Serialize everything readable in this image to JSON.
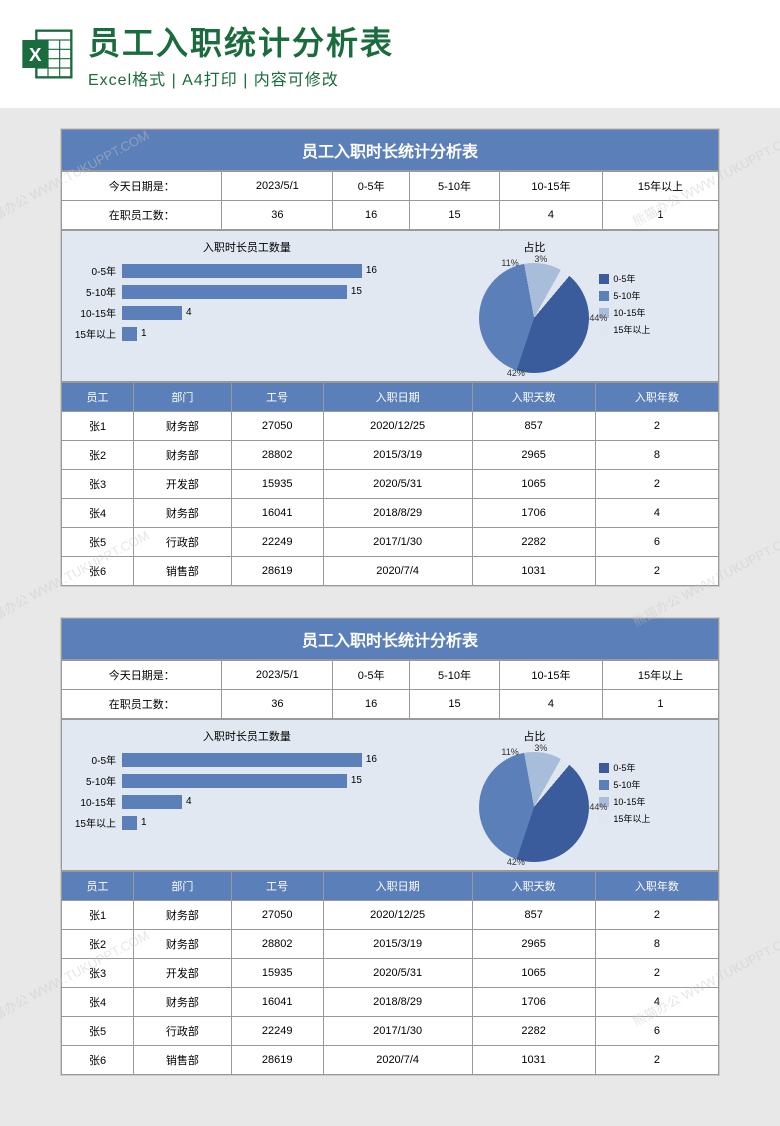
{
  "banner": {
    "title": "员工入职统计分析表",
    "subtitle": "Excel格式 | A4打印 | 内容可修改"
  },
  "sheet": {
    "title": "员工入职时长统计分析表",
    "summary": {
      "row1_labels": [
        "今天日期是：",
        "2023/5/1",
        "0-5年",
        "5-10年",
        "10-15年",
        "15年以上"
      ],
      "row2_labels": [
        "在职员工数：",
        "36",
        "16",
        "15",
        "4",
        "1"
      ]
    },
    "bar_chart": {
      "title": "入职时长员工数量",
      "max": 20,
      "color": "#5b7fb8",
      "bars": [
        {
          "label": "0-5年",
          "value": 16
        },
        {
          "label": "5-10年",
          "value": 15
        },
        {
          "label": "10-15年",
          "value": 4
        },
        {
          "label": "15年以上",
          "value": 1
        }
      ]
    },
    "pie_chart": {
      "title": "占比",
      "slices": [
        {
          "label": "0-5年",
          "value": 44,
          "color": "#3a5c9c"
        },
        {
          "label": "5-10年",
          "value": 42,
          "color": "#5b7fb8"
        },
        {
          "label": "10-15年",
          "value": 11,
          "color": "#a8bdd9"
        },
        {
          "label": "15年以上",
          "value": 3,
          "color": "#e0e6f0"
        }
      ]
    },
    "table": {
      "columns": [
        "员工",
        "部门",
        "工号",
        "入职日期",
        "入职天数",
        "入职年数"
      ],
      "rows": [
        [
          "张1",
          "财务部",
          "27050",
          "2020/12/25",
          "857",
          "2"
        ],
        [
          "张2",
          "财务部",
          "28802",
          "2015/3/19",
          "2965",
          "8"
        ],
        [
          "张3",
          "开发部",
          "15935",
          "2020/5/31",
          "1065",
          "2"
        ],
        [
          "张4",
          "财务部",
          "16041",
          "2018/8/29",
          "1706",
          "4"
        ],
        [
          "张5",
          "行政部",
          "22249",
          "2017/1/30",
          "2282",
          "6"
        ],
        [
          "张6",
          "销售部",
          "28619",
          "2020/7/4",
          "1031",
          "2"
        ]
      ]
    }
  },
  "watermark": "熊猫办公 WWW.TUKUPPT.COM",
  "colors": {
    "primary": "#5b7fb8",
    "chart_bg": "#e1e8f2",
    "excel_green": "#1a6b3d"
  }
}
